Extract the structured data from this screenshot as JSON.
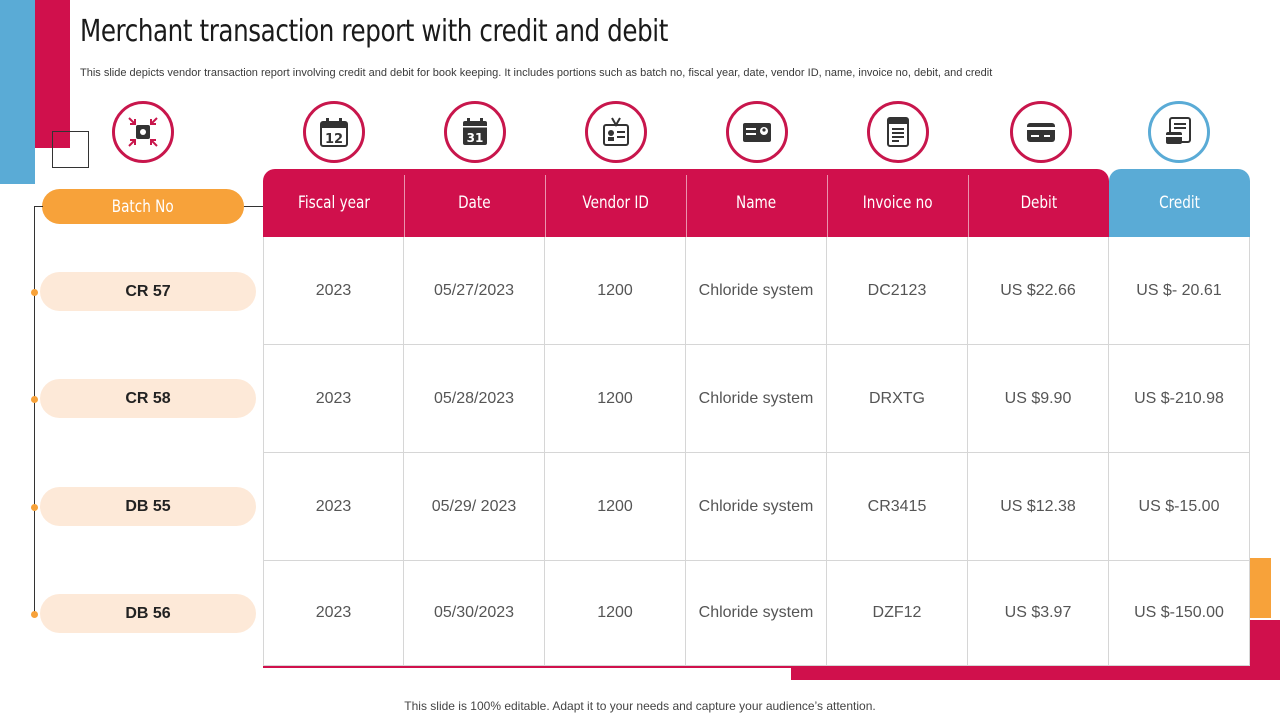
{
  "title": "Merchant transaction report with credit and debit",
  "subtitle": "This slide depicts vendor transaction report involving credit and debit for  book keeping. It includes portions such as batch no, fiscal year, date, vendor ID,  name, invoice no, debit, and credit",
  "colors": {
    "primary_red": "#d0104c",
    "accent_blue": "#5aabd6",
    "accent_orange": "#f7a23a",
    "pill_bg": "#fde9d8"
  },
  "icons": [
    "merge-arrows-icon",
    "calendar-12-icon",
    "calendar-31-icon",
    "id-badge-icon",
    "id-card-icon",
    "invoice-icon",
    "credit-card-icon",
    "receipt-card-icon"
  ],
  "batch_header": "Batch No",
  "batches": [
    "CR 57",
    "CR 58",
    "DB 55",
    "DB 56"
  ],
  "table": {
    "headers": [
      "Fiscal year",
      "Date",
      "Vendor ID",
      "Name",
      "Invoice no",
      "Debit",
      "Credit"
    ],
    "rows": [
      [
        "2023",
        "05/27/2023",
        "1200",
        "Chloride system",
        "DC2123",
        "US $22.66",
        "US $- 20.61"
      ],
      [
        "2023",
        "05/28/2023",
        "1200",
        "Chloride system",
        "DRXTG",
        "US $9.90",
        "US $-210.98"
      ],
      [
        "2023",
        "05/29/ 2023",
        "1200",
        "Chloride system",
        "CR3415",
        "US $12.38",
        "US $-15.00"
      ],
      [
        "2023",
        "05/30/2023",
        "1200",
        "Chloride system",
        "DZF12",
        "US $3.97",
        "US $-150.00"
      ]
    ]
  },
  "footer": "This slide is 100% editable. Adapt it to your needs and capture your audience’s attention."
}
